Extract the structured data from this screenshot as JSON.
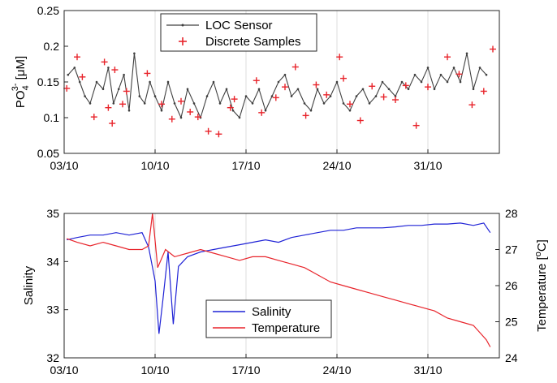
{
  "chart_data": [
    {
      "type": "line",
      "name": "phosphate-panel",
      "ylabel_main": "PO",
      "ylabel_sub": "4",
      "ylabel_sup": "3-",
      "ylabel_unit": " [μM]",
      "xlabel": "",
      "xlim": [
        0,
        33.5
      ],
      "ylim": [
        0.05,
        0.25
      ],
      "yticks": [
        0.05,
        0.1,
        0.15,
        0.2,
        0.25
      ],
      "ytick_labels": [
        "0.05",
        "0.1",
        "0.15",
        "0.2",
        "0.25"
      ],
      "xticks": [
        0,
        7,
        14,
        21,
        28
      ],
      "xtick_labels": [
        "03/10",
        "10/10",
        "17/10",
        "24/10",
        "31/10"
      ],
      "grid": "vertical",
      "legend_position": "top-center",
      "series": [
        {
          "name": "LOC Sensor",
          "color": "#404040",
          "style": "line-with-dots",
          "x": [
            0.3,
            0.8,
            1.2,
            1.6,
            2.0,
            2.5,
            3.0,
            3.4,
            3.8,
            4.2,
            4.6,
            5.0,
            5.4,
            5.8,
            6.2,
            6.6,
            7.0,
            7.5,
            8.0,
            8.5,
            9.0,
            9.5,
            10.0,
            10.5,
            11.0,
            11.5,
            12.0,
            12.5,
            13.0,
            13.5,
            14.0,
            14.5,
            15.0,
            15.5,
            16.0,
            16.5,
            17.0,
            17.5,
            18.0,
            18.5,
            19.0,
            19.5,
            20.0,
            20.5,
            21.0,
            21.5,
            22.0,
            22.5,
            23.0,
            23.5,
            24.0,
            24.5,
            25.0,
            25.5,
            26.0,
            26.5,
            27.0,
            27.5,
            28.0,
            28.5,
            29.0,
            29.5,
            30.0,
            30.5,
            31.0,
            31.5,
            32.0,
            32.5
          ],
          "y": [
            0.16,
            0.17,
            0.15,
            0.13,
            0.12,
            0.15,
            0.14,
            0.17,
            0.12,
            0.14,
            0.16,
            0.11,
            0.19,
            0.13,
            0.12,
            0.15,
            0.13,
            0.11,
            0.15,
            0.12,
            0.1,
            0.14,
            0.12,
            0.1,
            0.13,
            0.15,
            0.12,
            0.14,
            0.11,
            0.1,
            0.13,
            0.12,
            0.14,
            0.11,
            0.13,
            0.15,
            0.16,
            0.13,
            0.14,
            0.12,
            0.11,
            0.14,
            0.12,
            0.13,
            0.15,
            0.12,
            0.11,
            0.13,
            0.14,
            0.12,
            0.13,
            0.15,
            0.14,
            0.13,
            0.15,
            0.14,
            0.16,
            0.15,
            0.17,
            0.14,
            0.16,
            0.15,
            0.17,
            0.15,
            0.19,
            0.14,
            0.17,
            0.16
          ]
        },
        {
          "name": "Discrete Samples",
          "color": "#e8242b",
          "style": "plus-markers",
          "x": [
            0.2,
            1.0,
            1.4,
            2.3,
            3.1,
            3.4,
            3.7,
            3.9,
            4.5,
            4.8,
            6.4,
            7.5,
            8.3,
            9.0,
            9.7,
            10.3,
            11.1,
            11.9,
            12.8,
            13.1,
            14.8,
            15.2,
            16.3,
            17.0,
            17.8,
            18.6,
            19.4,
            20.2,
            21.2,
            21.5,
            22.0,
            22.8,
            23.7,
            24.6,
            25.5,
            26.3,
            27.1,
            28.0,
            29.5,
            30.4,
            31.4,
            32.3,
            33.0
          ],
          "y": [
            0.141,
            0.185,
            0.157,
            0.101,
            0.178,
            0.114,
            0.092,
            0.167,
            0.119,
            0.137,
            0.162,
            0.119,
            0.098,
            0.123,
            0.108,
            0.101,
            0.081,
            0.077,
            0.114,
            0.126,
            0.152,
            0.107,
            0.128,
            0.143,
            0.171,
            0.103,
            0.146,
            0.132,
            0.185,
            0.155,
            0.119,
            0.096,
            0.144,
            0.129,
            0.125,
            0.145,
            0.089,
            0.143,
            0.185,
            0.161,
            0.118,
            0.137,
            0.196
          ]
        }
      ]
    },
    {
      "type": "line",
      "name": "salinity-temperature-panel",
      "ylabel_left": "Salinity",
      "ylabel_right_main": "Temperature [",
      "ylabel_right_sup": "o",
      "ylabel_right_end": "C]",
      "xlabel": "",
      "xlim": [
        0,
        33.5
      ],
      "ylim_left": [
        32,
        35
      ],
      "yticks_left": [
        32,
        33,
        34,
        35
      ],
      "ytick_labels_left": [
        "32",
        "33",
        "34",
        "35"
      ],
      "ylim_right": [
        24,
        28
      ],
      "yticks_right": [
        24,
        25,
        26,
        27,
        28
      ],
      "ytick_labels_right": [
        "24",
        "25",
        "26",
        "27",
        "28"
      ],
      "xticks": [
        0,
        7,
        14,
        21,
        28
      ],
      "xtick_labels": [
        "03/10",
        "10/10",
        "17/10",
        "24/10",
        "31/10"
      ],
      "grid": "vertical",
      "legend_position": "bottom-center",
      "series": [
        {
          "name": "Salinity",
          "axis": "left",
          "color": "#1f22d6",
          "x": [
            0.2,
            1.0,
            2.0,
            3.0,
            4.0,
            5.0,
            6.0,
            6.5,
            7.0,
            7.3,
            7.6,
            8.0,
            8.4,
            8.8,
            9.5,
            10.5,
            11.5,
            12.5,
            13.5,
            14.5,
            15.5,
            16.5,
            17.5,
            18.5,
            19.5,
            20.5,
            21.5,
            22.5,
            23.5,
            24.5,
            25.5,
            26.5,
            27.5,
            28.5,
            29.5,
            30.5,
            31.5,
            32.3,
            32.8
          ],
          "y": [
            34.45,
            34.5,
            34.55,
            34.55,
            34.6,
            34.55,
            34.6,
            34.3,
            33.6,
            32.5,
            33.2,
            34.2,
            32.7,
            33.9,
            34.1,
            34.2,
            34.25,
            34.3,
            34.35,
            34.4,
            34.45,
            34.4,
            34.5,
            34.55,
            34.6,
            34.65,
            34.65,
            34.7,
            34.7,
            34.7,
            34.72,
            34.75,
            34.75,
            34.78,
            34.78,
            34.8,
            34.75,
            34.8,
            34.6
          ]
        },
        {
          "name": "Temperature",
          "axis": "right",
          "color": "#e8242b",
          "x": [
            0.2,
            1.0,
            2.0,
            3.0,
            4.0,
            5.0,
            6.0,
            6.5,
            6.8,
            7.2,
            7.8,
            8.5,
            9.5,
            10.5,
            11.5,
            12.5,
            13.5,
            14.5,
            15.5,
            16.5,
            17.5,
            18.5,
            19.5,
            20.5,
            21.5,
            22.5,
            23.5,
            24.5,
            25.5,
            26.5,
            27.5,
            28.5,
            29.5,
            30.5,
            31.5,
            32.0,
            32.5,
            32.8
          ],
          "y": [
            27.3,
            27.2,
            27.1,
            27.2,
            27.1,
            27.0,
            27.0,
            27.1,
            28.0,
            26.5,
            27.0,
            26.8,
            26.9,
            27.0,
            26.9,
            26.8,
            26.7,
            26.8,
            26.8,
            26.7,
            26.6,
            26.5,
            26.3,
            26.1,
            26.0,
            25.9,
            25.8,
            25.7,
            25.6,
            25.5,
            25.4,
            25.3,
            25.1,
            25.0,
            24.9,
            24.7,
            24.5,
            24.3
          ]
        }
      ]
    }
  ]
}
